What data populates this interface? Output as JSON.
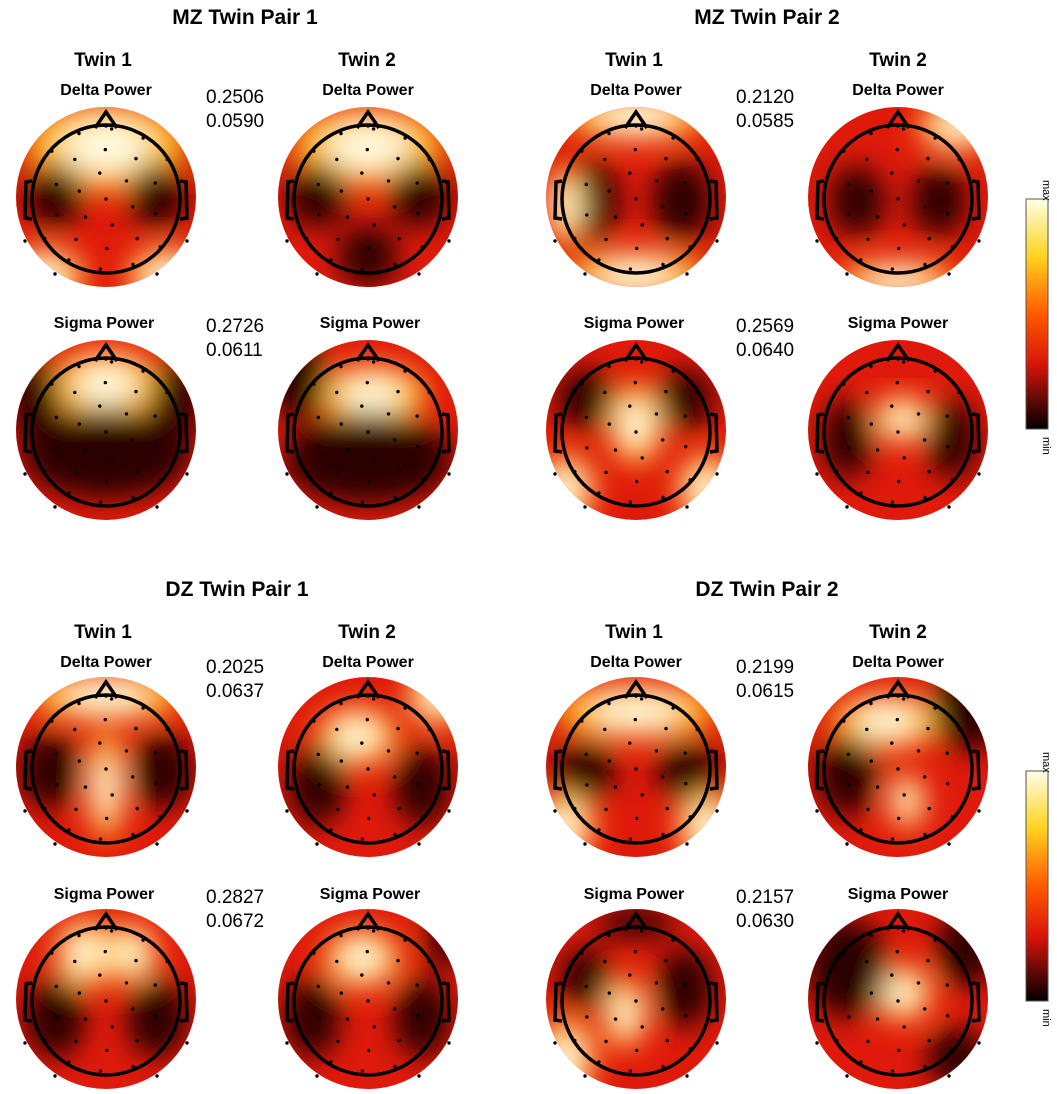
{
  "colors": {
    "max": "#ffffe6",
    "mid": "#ff5a00",
    "min": "#000000",
    "red": "#e01a0b"
  },
  "icons": [
    "head-outline-icon",
    "electrode-dot-icon"
  ],
  "colorbar": {
    "max_label": "max",
    "min_label": "min"
  },
  "panels": [
    {
      "title": "MZ Twin Pair 1",
      "twin1_label": "Twin 1",
      "twin2_label": "Twin 2",
      "rows": [
        {
          "band": "Delta Power",
          "value_a": "0.2506",
          "value_b": "0.0590"
        },
        {
          "band": "Sigma Power",
          "value_a": "0.2726",
          "value_b": "0.0611"
        }
      ]
    },
    {
      "title": "MZ Twin Pair 2",
      "twin1_label": "Twin 1",
      "twin2_label": "Twin 2",
      "rows": [
        {
          "band": "Delta Power",
          "value_a": "0.2120",
          "value_b": "0.0585"
        },
        {
          "band": "Sigma Power",
          "value_a": "0.2569",
          "value_b": "0.0640"
        }
      ]
    },
    {
      "title": "DZ Twin Pair 1",
      "twin1_label": "Twin 1",
      "twin2_label": "Twin 2",
      "rows": [
        {
          "band": "Delta Power",
          "value_a": "0.2025",
          "value_b": "0.0637"
        },
        {
          "band": "Sigma Power",
          "value_a": "0.2827",
          "value_b": "0.0672"
        }
      ]
    },
    {
      "title": "DZ Twin Pair 2",
      "twin1_label": "Twin 1",
      "twin2_label": "Twin 2",
      "rows": [
        {
          "band": "Delta Power",
          "value_a": "0.2199",
          "value_b": "0.0615"
        },
        {
          "band": "Sigma Power",
          "value_a": "0.2157",
          "value_b": "0.0630"
        }
      ]
    }
  ]
}
